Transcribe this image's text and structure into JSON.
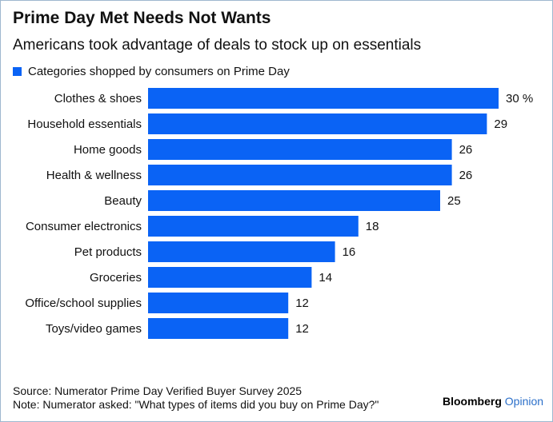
{
  "header": {
    "title": "Prime Day Met Needs Not Wants",
    "subtitle": "Americans took advantage of deals to stock up on essentials"
  },
  "footer": {
    "source": "Source: Numerator Prime Day Verified Buyer Survey 2025",
    "note": "Note: Numerator asked: \"What types of items did you buy on Prime Day?\"",
    "logo_brand": "Bloomberg",
    "logo_suffix": "Opinion"
  },
  "colors": {
    "bar": "#0a63f5",
    "logo_accent": "#2b6fc9"
  },
  "chart_data": {
    "type": "bar",
    "orientation": "horizontal",
    "categories": [
      "Clothes & shoes",
      "Household essentials",
      "Home goods",
      "Health & wellness",
      "Beauty",
      "Consumer electronics",
      "Pet products",
      "Groceries",
      "Office/school supplies",
      "Toys/video games"
    ],
    "series": [
      {
        "name": "Categories shopped by consumers on Prime Day",
        "values": [
          30,
          29,
          26,
          26,
          25,
          18,
          16,
          14,
          12,
          12
        ]
      }
    ],
    "value_labels": [
      "30 %",
      "29",
      "26",
      "26",
      "25",
      "18",
      "16",
      "14",
      "12",
      "12"
    ],
    "xlim": [
      0,
      30
    ],
    "grid": false,
    "legend_position": "top-left"
  }
}
